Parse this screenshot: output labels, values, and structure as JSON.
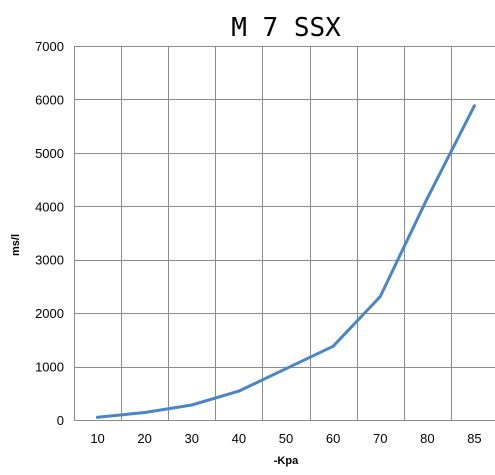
{
  "chart_data": {
    "type": "line",
    "title": "M 7 SSX",
    "xlabel": "-Kpa",
    "ylabel": "ms/l",
    "categories": [
      "10",
      "20",
      "30",
      "40",
      "50",
      "60",
      "70",
      "80",
      "85"
    ],
    "series": [
      {
        "color": "#4a86c5",
        "values": [
          50,
          140,
          280,
          540,
          960,
          1380,
          2310,
          4150,
          5880
        ]
      }
    ],
    "ylim": [
      0,
      7000
    ],
    "yticks": [
      0,
      1000,
      2000,
      3000,
      4000,
      5000,
      6000,
      7000
    ],
    "grid": true,
    "legend": "none"
  }
}
